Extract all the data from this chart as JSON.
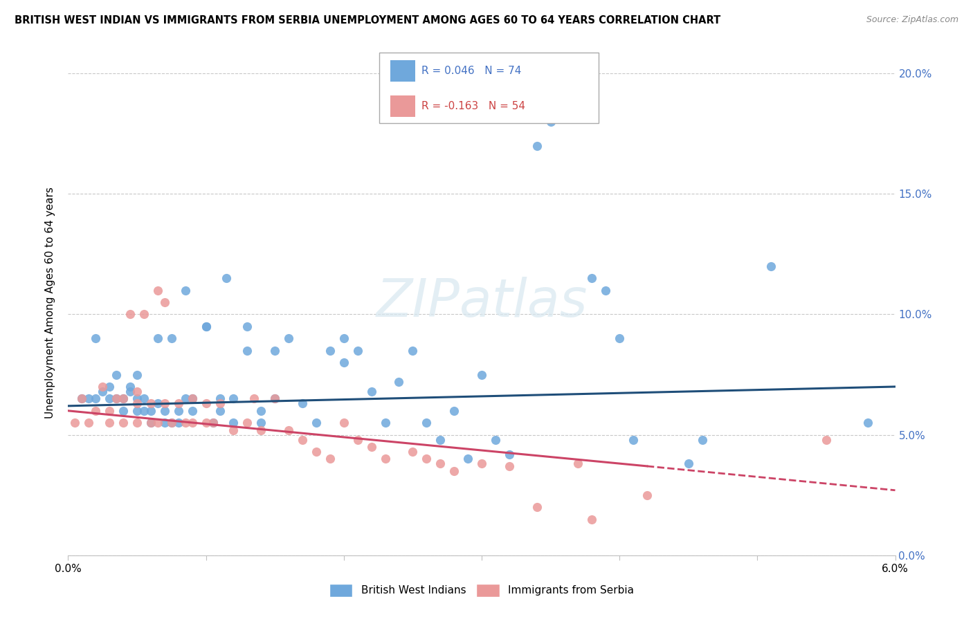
{
  "title": "BRITISH WEST INDIAN VS IMMIGRANTS FROM SERBIA UNEMPLOYMENT AMONG AGES 60 TO 64 YEARS CORRELATION CHART",
  "source": "Source: ZipAtlas.com",
  "ylabel": "Unemployment Among Ages 60 to 64 years",
  "xlim": [
    0.0,
    6.0
  ],
  "ylim": [
    0.0,
    21.0
  ],
  "xtick_positions": [
    0.0,
    1.0,
    2.0,
    3.0,
    4.0,
    5.0,
    6.0
  ],
  "xtick_labels": [
    "0.0%",
    "",
    "",
    "",
    "",
    "",
    "6.0%"
  ],
  "ytick_values": [
    0.0,
    5.0,
    10.0,
    15.0,
    20.0
  ],
  "ytick_labels": [
    "0.0%",
    "5.0%",
    "10.0%",
    "15.0%",
    "20.0%"
  ],
  "blue_R": 0.046,
  "blue_N": 74,
  "pink_R": -0.163,
  "pink_N": 54,
  "blue_color": "#6fa8dc",
  "pink_color": "#ea9999",
  "blue_line_color": "#1f4e79",
  "pink_line_color": "#cc4466",
  "watermark": "ZIPatlas",
  "legend_label_blue": "British West Indians",
  "legend_label_pink": "Immigrants from Serbia",
  "blue_line_x0": 0.0,
  "blue_line_y0": 6.2,
  "blue_line_x1": 6.0,
  "blue_line_y1": 7.0,
  "pink_line_x0": 0.0,
  "pink_line_y0": 6.0,
  "pink_line_x1": 4.2,
  "pink_line_y1": 3.7,
  "pink_dash_x0": 4.2,
  "pink_dash_y0": 3.7,
  "pink_dash_x1": 6.0,
  "pink_dash_y1": 2.7,
  "blue_scatter_x": [
    0.1,
    0.15,
    0.2,
    0.2,
    0.25,
    0.3,
    0.3,
    0.35,
    0.35,
    0.4,
    0.4,
    0.45,
    0.45,
    0.5,
    0.5,
    0.5,
    0.55,
    0.55,
    0.6,
    0.6,
    0.65,
    0.65,
    0.7,
    0.7,
    0.75,
    0.75,
    0.8,
    0.8,
    0.85,
    0.85,
    0.9,
    0.9,
    1.0,
    1.0,
    1.05,
    1.1,
    1.1,
    1.15,
    1.2,
    1.2,
    1.3,
    1.3,
    1.4,
    1.4,
    1.5,
    1.5,
    1.6,
    1.7,
    1.8,
    1.9,
    2.0,
    2.0,
    2.1,
    2.2,
    2.3,
    2.4,
    2.5,
    2.6,
    2.7,
    2.8,
    2.9,
    3.0,
    3.1,
    3.2,
    3.4,
    3.5,
    3.8,
    3.9,
    4.0,
    4.1,
    4.5,
    4.6,
    5.1,
    5.8
  ],
  "blue_scatter_y": [
    6.5,
    6.5,
    9.0,
    6.5,
    6.8,
    6.5,
    7.0,
    6.5,
    7.5,
    6.0,
    6.5,
    6.8,
    7.0,
    6.0,
    6.5,
    7.5,
    6.0,
    6.5,
    5.5,
    6.0,
    6.3,
    9.0,
    5.5,
    6.0,
    5.5,
    9.0,
    5.5,
    6.0,
    6.5,
    11.0,
    6.0,
    6.5,
    9.5,
    9.5,
    5.5,
    6.0,
    6.5,
    11.5,
    5.5,
    6.5,
    8.5,
    9.5,
    5.5,
    6.0,
    6.5,
    8.5,
    9.0,
    6.3,
    5.5,
    8.5,
    8.0,
    9.0,
    8.5,
    6.8,
    5.5,
    7.2,
    8.5,
    5.5,
    4.8,
    6.0,
    4.0,
    7.5,
    4.8,
    4.2,
    17.0,
    18.0,
    11.5,
    11.0,
    9.0,
    4.8,
    3.8,
    4.8,
    12.0,
    5.5
  ],
  "pink_scatter_x": [
    0.05,
    0.1,
    0.15,
    0.2,
    0.25,
    0.3,
    0.3,
    0.35,
    0.4,
    0.4,
    0.45,
    0.5,
    0.5,
    0.5,
    0.55,
    0.6,
    0.6,
    0.65,
    0.65,
    0.7,
    0.7,
    0.75,
    0.8,
    0.85,
    0.9,
    0.9,
    1.0,
    1.0,
    1.05,
    1.1,
    1.2,
    1.3,
    1.35,
    1.4,
    1.5,
    1.6,
    1.7,
    1.8,
    1.9,
    2.0,
    2.1,
    2.2,
    2.3,
    2.5,
    2.6,
    2.7,
    2.8,
    3.0,
    3.2,
    3.4,
    3.7,
    3.8,
    4.2,
    5.5
  ],
  "pink_scatter_y": [
    5.5,
    6.5,
    5.5,
    6.0,
    7.0,
    5.5,
    6.0,
    6.5,
    5.5,
    6.5,
    10.0,
    5.5,
    6.3,
    6.8,
    10.0,
    5.5,
    6.3,
    11.0,
    5.5,
    6.3,
    10.5,
    5.5,
    6.3,
    5.5,
    5.5,
    6.5,
    5.5,
    6.3,
    5.5,
    6.3,
    5.2,
    5.5,
    6.5,
    5.2,
    6.5,
    5.2,
    4.8,
    4.3,
    4.0,
    5.5,
    4.8,
    4.5,
    4.0,
    4.3,
    4.0,
    3.8,
    3.5,
    3.8,
    3.7,
    2.0,
    3.8,
    1.5,
    2.5,
    4.8
  ]
}
